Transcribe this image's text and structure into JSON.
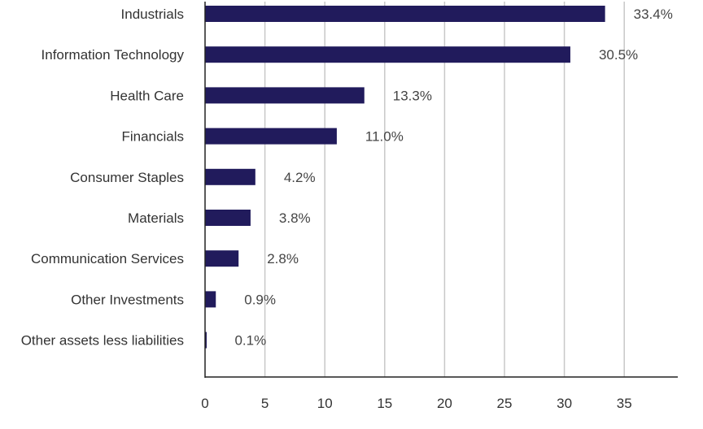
{
  "chart_data": {
    "type": "bar",
    "orientation": "horizontal",
    "title": "",
    "xlabel": "",
    "ylabel": "",
    "categories": [
      "Industrials",
      "Information Technology",
      "Health Care",
      "Financials",
      "Consumer Staples",
      "Materials",
      "Communication Services",
      "Other Investments",
      "Other assets less liabilities"
    ],
    "values": [
      33.4,
      30.5,
      13.3,
      11.0,
      4.2,
      3.8,
      2.8,
      0.9,
      0.1
    ],
    "value_labels": [
      "33.4%",
      "30.5%",
      "13.3%",
      "11.0%",
      "4.2%",
      "3.8%",
      "2.8%",
      "0.9%",
      "0.1%"
    ],
    "xlim": [
      0,
      39.5
    ],
    "xticks": [
      0,
      5,
      10,
      15,
      20,
      25,
      30,
      35
    ],
    "grid": "vertical",
    "legend": "none",
    "bar_color": "#211b5c",
    "grid_color": "#c8c8c8",
    "axis_color": "#222222"
  }
}
